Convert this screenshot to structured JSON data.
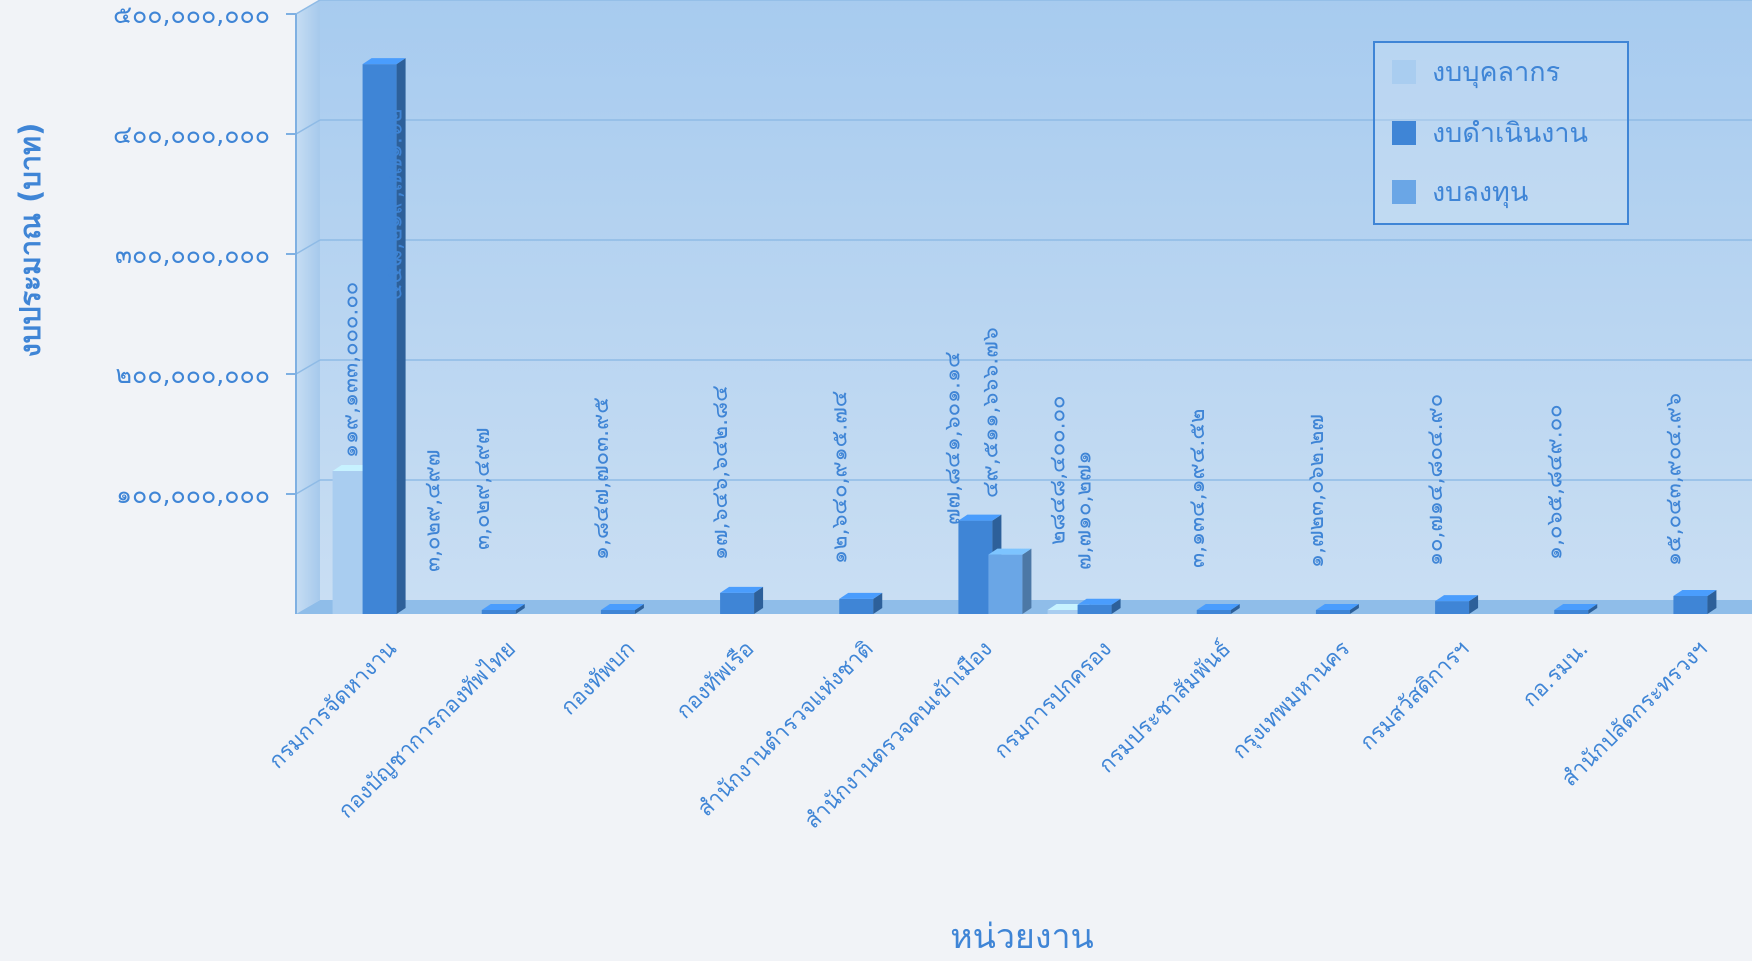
{
  "chart_data": {
    "type": "bar",
    "title": "",
    "xlabel": "หน่วยงาน",
    "ylabel": "งบประมาณ (บาท)",
    "ylim": [
      0,
      500000000
    ],
    "y_ticks": [
      {
        "value": 100000000,
        "label": "๑๐๐,๐๐๐,๐๐๐"
      },
      {
        "value": 200000000,
        "label": "๒๐๐,๐๐๐,๐๐๐"
      },
      {
        "value": 300000000,
        "label": "๓๐๐,๐๐๐,๐๐๐"
      },
      {
        "value": 400000000,
        "label": "๔๐๐,๐๐๐,๐๐๐"
      },
      {
        "value": 500000000,
        "label": "๕๐๐,๐๐๐,๐๐๐"
      }
    ],
    "grid": true,
    "legend_position": "top-right",
    "categories": [
      "กรมการจัดหางาน",
      "กองบัญชาการกองทัพไทย",
      "กองทัพบก",
      "กองทัพเรือ",
      "สำนักงานตำรวจแห่งชาติ",
      "สำนักงานตรวจคนเข้าเมือง",
      "กรมการปกครอง",
      "กรมประชาสัมพันธ์",
      "กรุงเทพมหานคร",
      "กรมสวัสดิการฯ",
      "กอ.รมน.",
      "สำนักปลัดกระทรวงฯ"
    ],
    "series": [
      {
        "name": "งบบุคลากร",
        "color": "#a9cdf0",
        "values": [
          119133000.0,
          null,
          null,
          null,
          null,
          null,
          2848400.0,
          null,
          null,
          null,
          null,
          null
        ],
        "labels": [
          "๑๑๙,๑๓๓,๐๐๐.๐๐",
          "",
          "",
          "",
          "",
          "",
          "๒๘๔๘,๔๐๐.๐๐",
          "",
          "",
          "",
          "",
          ""
        ]
      },
      {
        "name": "งบดำเนินงาน",
        "color": "#3f85d6",
        "values": [
          458219771.62,
          3029497,
          1847703.95,
          17646642.84,
          12640915.74,
          77841601.14,
          7710271,
          3134194.52,
          1723062.27,
          10714804.9,
          1065849.0,
          15043904.96
        ],
        "labels": [
          "๔๕๘,๒๑๙,๗๗๑.๖๒",
          "๓,๐๒๙,๔๙๗",
          "๑,๘๔๗,๗๐๓.๙๕",
          "๑๗,๖๔๖,๖๔๒.๘๔",
          "๑๒,๖๔๐,๙๑๕.๗๔",
          "๗๗,๘๔๑,๖๐๑.๑๔",
          "๗,๗๑๐,๒๗๑",
          "๓,๑๓๔,๑๙๔.๕๒",
          "๑,๗๒๓,๐๖๒.๒๗",
          "๑๐,๗๑๔,๘๐๔.๙๐",
          "๑,๐๖๕,๘๔๙.๐๐",
          "๑๕,๐๔๓,๙๐๔.๙๖"
        ]
      },
      {
        "name": "งบลงทุน",
        "color": "#6aa6e6",
        "values": [
          null,
          null,
          null,
          null,
          null,
          49511666.76,
          null,
          null,
          null,
          null,
          null,
          null
        ],
        "labels": [
          "",
          "",
          "",
          "",
          "",
          "๔๙,๕๑๑,๖๖๖.๗๖",
          "",
          "",
          "",
          "",
          "",
          ""
        ]
      }
    ]
  }
}
